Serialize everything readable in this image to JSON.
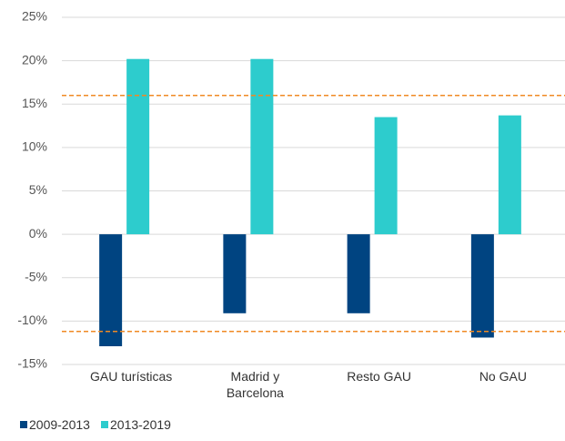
{
  "chart_data": {
    "type": "bar",
    "categories": [
      "GAU turísticas",
      "Madrid y Barcelona",
      "Resto GAU",
      "No GAU"
    ],
    "series": [
      {
        "name": "2009-2013",
        "color": "#004481",
        "values": [
          -12.9,
          -9.1,
          -9.1,
          -11.9
        ]
      },
      {
        "name": "2013-2019",
        "color": "#2dcccd",
        "values": [
          20.2,
          20.2,
          13.5,
          13.7
        ]
      }
    ],
    "ylim": [
      -15,
      25
    ],
    "yticks": [
      {
        "value": -15,
        "label": "-15%"
      },
      {
        "value": -10,
        "label": "-10%"
      },
      {
        "value": -5,
        "label": "-5%"
      },
      {
        "value": 0,
        "label": "0%"
      },
      {
        "value": 5,
        "label": "5%"
      },
      {
        "value": 10,
        "label": "10%"
      },
      {
        "value": 15,
        "label": "15%"
      },
      {
        "value": 20,
        "label": "20%"
      },
      {
        "value": 25,
        "label": "25%"
      }
    ],
    "grid": true,
    "reference_lines": [
      16,
      -11.2
    ],
    "reference_color": "#f08a24",
    "legend": "bottom-left"
  }
}
